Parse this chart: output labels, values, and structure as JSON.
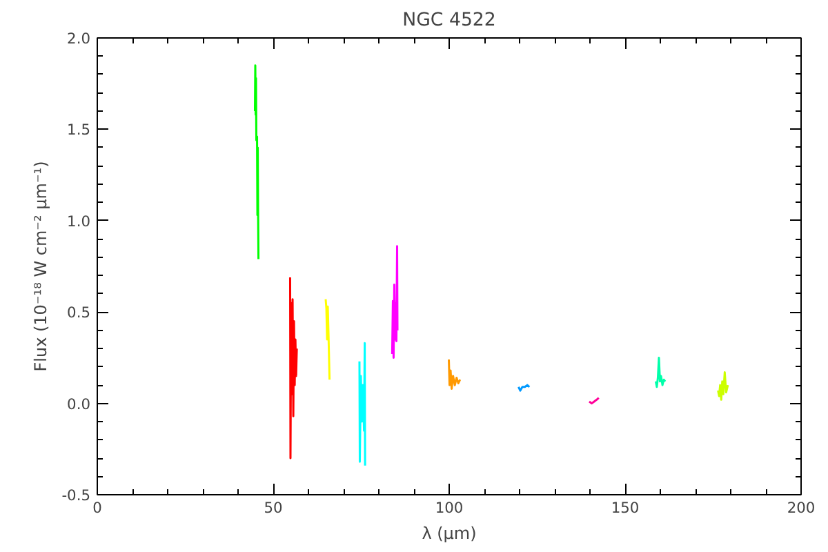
{
  "chart_data": {
    "type": "line",
    "title": "NGC 4522",
    "xlabel": "λ (μm)",
    "ylabel": "Flux (10⁻¹⁸ W cm⁻² μm⁻¹)",
    "xlim": [
      0,
      200
    ],
    "xticks": [
      0,
      50,
      100,
      150,
      200
    ],
    "ylim": [
      -0.5,
      2.0
    ],
    "yticks": [
      {
        "value": -0.5,
        "label": "-0.5"
      },
      {
        "value": 0,
        "label": "0.0"
      },
      {
        "value": 0.5,
        "label": "0.5"
      },
      {
        "value": 1.0,
        "label": "1.0"
      },
      {
        "value": 1.5,
        "label": "1.5"
      },
      {
        "value": 2.0,
        "label": "2.0"
      }
    ],
    "grid": false,
    "series": [
      {
        "color": "#00ff00",
        "x": [
          44.8,
          44.9,
          45.0,
          45.1,
          45.2,
          45.4,
          45.5,
          45.6,
          45.7,
          45.8
        ],
        "values": [
          1.6,
          1.85,
          1.58,
          1.78,
          1.44,
          1.46,
          1.03,
          1.4,
          1.05,
          0.79
        ]
      },
      {
        "color": "#ff0000",
        "x": [
          54.8,
          54.9,
          55.1,
          55.3,
          55.5,
          55.7,
          55.9,
          56.1,
          56.3,
          56.5,
          56.7
        ],
        "values": [
          0.69,
          -0.3,
          0.55,
          0.05,
          0.57,
          -0.07,
          0.45,
          0.1,
          0.35,
          0.15,
          0.3
        ]
      },
      {
        "color": "#ffff00",
        "x": [
          64.9,
          65.1,
          65.3,
          65.5,
          65.7,
          66.0
        ],
        "values": [
          0.57,
          0.52,
          0.35,
          0.53,
          0.38,
          0.13
        ]
      },
      {
        "color": "#00ffff",
        "x": [
          74.5,
          74.6,
          74.9,
          75.2,
          75.5,
          75.8,
          76.0,
          76.1
        ],
        "values": [
          0.23,
          -0.32,
          0.15,
          -0.1,
          0.1,
          -0.15,
          0.33,
          -0.34
        ]
      },
      {
        "color": "#ff00ff",
        "x": [
          83.8,
          84.0,
          84.2,
          84.4,
          84.6,
          84.8,
          85.0,
          85.2,
          85.3
        ],
        "values": [
          0.27,
          0.56,
          0.25,
          0.65,
          0.35,
          0.55,
          0.34,
          0.86,
          0.4
        ]
      },
      {
        "color": "#ff9900",
        "x": [
          99.9,
          100.1,
          100.4,
          100.7,
          101.1,
          101.6,
          102.1,
          102.6,
          103.1
        ],
        "values": [
          0.24,
          0.1,
          0.18,
          0.08,
          0.15,
          0.1,
          0.14,
          0.11,
          0.13
        ]
      },
      {
        "color": "#0099ff",
        "x": [
          119.7,
          120.2,
          120.8,
          121.5,
          122.2,
          122.8
        ],
        "values": [
          0.09,
          0.07,
          0.09,
          0.09,
          0.1,
          0.09
        ]
      },
      {
        "color": "#ff0099",
        "x": [
          139.8,
          140.5,
          141.2,
          141.9,
          142.5
        ],
        "values": [
          0.01,
          0.0,
          0.01,
          0.02,
          0.03
        ]
      },
      {
        "color": "#00ffaa",
        "x": [
          158.7,
          159.0,
          159.3,
          159.6,
          159.9,
          160.2,
          160.6,
          161.0,
          161.4
        ],
        "values": [
          0.12,
          0.09,
          0.14,
          0.25,
          0.12,
          0.15,
          0.1,
          0.13,
          0.12
        ]
      },
      {
        "color": "#ccff00",
        "x": [
          176.4,
          176.7,
          177.0,
          177.3,
          177.6,
          177.9,
          178.3,
          178.7,
          179.2
        ],
        "values": [
          0.07,
          0.04,
          0.1,
          0.02,
          0.12,
          0.05,
          0.17,
          0.06,
          0.1
        ]
      }
    ]
  }
}
